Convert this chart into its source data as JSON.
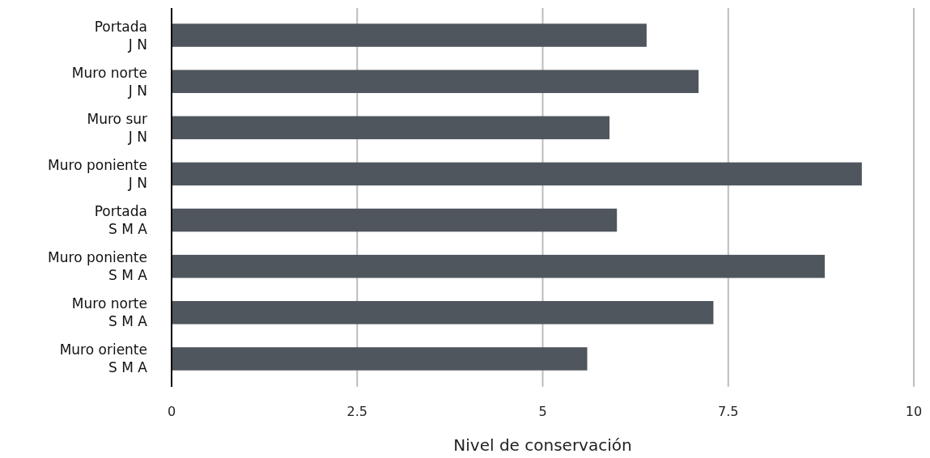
{
  "chart_data": {
    "type": "bar",
    "orientation": "horizontal",
    "categories": [
      "Portada\nJ N",
      "Muro norte\nJ N",
      "Muro sur\nJ N",
      "Muro poniente\nJ N",
      "Portada\nS M A",
      "Muro poniente\nS M A",
      "Muro norte\nS M A",
      "Muro oriente\nS M A"
    ],
    "values": [
      6.4,
      7.1,
      5.9,
      9.3,
      6.0,
      8.8,
      7.3,
      5.6
    ],
    "color": "#50565e",
    "xlim": [
      0,
      10
    ],
    "xticks": [
      0,
      2.5,
      5,
      7.5,
      10
    ],
    "xlabel": "Nivel de conservación",
    "grid": "x"
  }
}
